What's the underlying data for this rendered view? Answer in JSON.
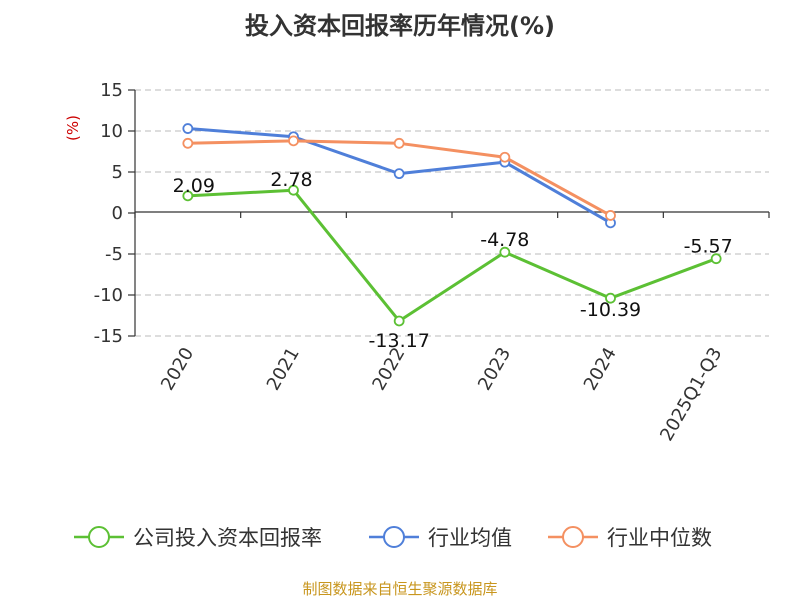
{
  "source": "制图数据来自恒生聚源数据库",
  "colors": {
    "grid": "#bbbbbb",
    "axis": "#333333",
    "source": "#c8961e"
  },
  "chart_data": {
    "type": "line",
    "title": "投入资本回报率历年情况(%)",
    "ylabel": "(%)",
    "categories": [
      "2020",
      "2021",
      "2022",
      "2023",
      "2024",
      "2025Q1-Q3"
    ],
    "ylim": [
      -15,
      15
    ],
    "yticks": [
      15,
      10,
      5,
      0,
      -5,
      -10,
      -15
    ],
    "grid": true,
    "legend_position": "bottom",
    "series": [
      {
        "name": "公司投入资本回报率",
        "color": "#5cc034",
        "values": [
          2.09,
          2.78,
          -13.17,
          -4.78,
          -10.39,
          -5.57
        ],
        "labels": [
          "2.09",
          "2.78",
          "-13.17",
          "-4.78",
          "-10.39",
          "-5.57"
        ]
      },
      {
        "name": "行业均值",
        "color": "#4f7fd9",
        "values": [
          10.3,
          9.3,
          4.8,
          6.2,
          -1.2,
          null
        ]
      },
      {
        "name": "行业中位数",
        "color": "#f49061",
        "values": [
          8.5,
          8.8,
          8.5,
          6.8,
          -0.3,
          null
        ]
      }
    ]
  }
}
